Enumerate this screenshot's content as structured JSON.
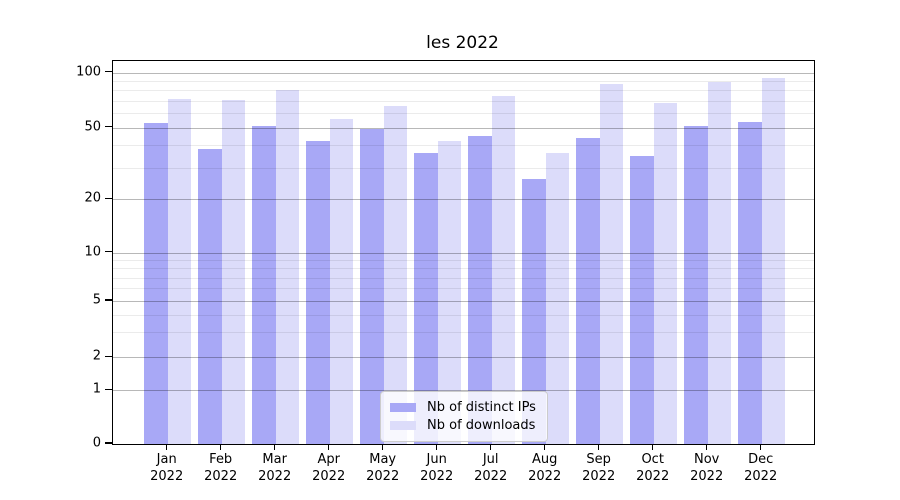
{
  "chart_data": {
    "type": "bar",
    "title": "les 2022",
    "categories": [
      "Jan",
      "Feb",
      "Mar",
      "Apr",
      "May",
      "Jun",
      "Jul",
      "Aug",
      "Sep",
      "Oct",
      "Nov",
      "Dec"
    ],
    "x_tick_year": "2022",
    "series": [
      {
        "name": "Nb of distinct IPs",
        "color": "#a8a8f6",
        "values": [
          53,
          38,
          51,
          42,
          49,
          36,
          45,
          26,
          44,
          35,
          51,
          54
        ]
      },
      {
        "name": "Nb of downloads",
        "color": "#dcdcfa",
        "values": [
          72,
          71,
          80,
          56,
          66,
          42,
          75,
          36,
          87,
          68,
          89,
          93
        ]
      }
    ],
    "yscale": "symlog",
    "y_ticks": [
      0,
      1,
      2,
      5,
      10,
      20,
      50,
      100
    ],
    "y_minor_gridlines": [
      3,
      4,
      6,
      7,
      8,
      9,
      30,
      40,
      60,
      70,
      80,
      90
    ],
    "ylim": [
      0,
      116
    ],
    "grid": true,
    "legend_position": "lower center"
  }
}
